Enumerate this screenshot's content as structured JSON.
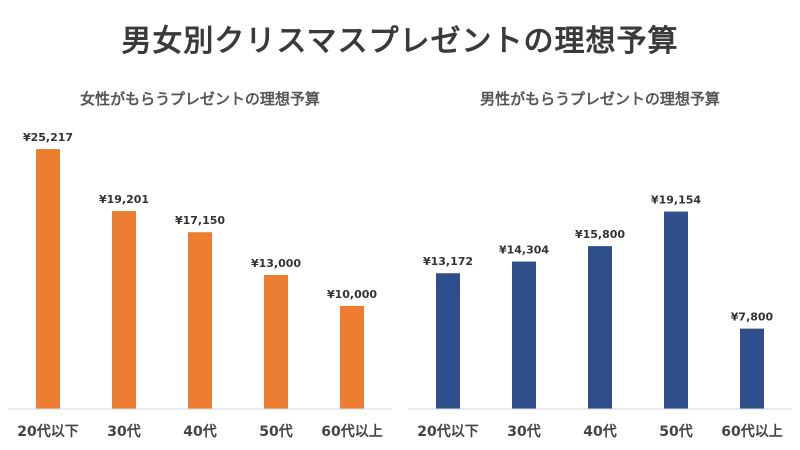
{
  "title": "男女別クリスマスプレゼントの理想予算",
  "chart_data": [
    {
      "type": "bar",
      "title": "女性がもらうプレゼントの理想予算",
      "categories": [
        "20代以下",
        "30代",
        "40代",
        "50代",
        "60代以上"
      ],
      "values": [
        25217,
        19201,
        17150,
        13000,
        10000
      ],
      "labels": [
        "¥25,217",
        "¥19,201",
        "¥17,150",
        "¥13,000",
        "¥10,000"
      ],
      "ylim": [
        0,
        26000
      ],
      "color": "#ED7D31",
      "grid": false
    },
    {
      "type": "bar",
      "title": "男性がもらうプレゼントの理想予算",
      "categories": [
        "20代以下",
        "30代",
        "40代",
        "50代",
        "60代以上"
      ],
      "values": [
        13172,
        14304,
        15800,
        19154,
        7800
      ],
      "labels": [
        "¥13,172",
        "¥14,304",
        "¥15,800",
        "¥19,154",
        "¥7,800"
      ],
      "ylim": [
        0,
        26000
      ],
      "color": "#2E4F8C",
      "grid": false
    }
  ]
}
